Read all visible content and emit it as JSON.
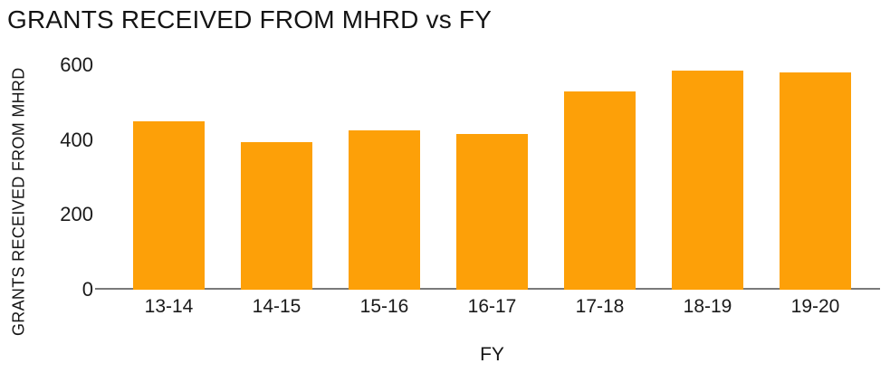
{
  "chart": {
    "title": "GRANTS RECEIVED FROM MHRD vs FY",
    "xlabel": "FY",
    "ylabel": "GRANTS RECEIVED FROM MHRD"
  },
  "chart_data": {
    "type": "bar",
    "title": "GRANTS RECEIVED FROM MHRD vs FY",
    "categories": [
      "13-14",
      "14-15",
      "15-16",
      "16-17",
      "17-18",
      "18-19",
      "19-20"
    ],
    "values": [
      450,
      395,
      425,
      415,
      530,
      585,
      580
    ],
    "xlabel": "FY",
    "ylabel": "GRANTS RECEIVED FROM MHRD",
    "ylim": [
      0,
      600
    ],
    "yticks": [
      0,
      200,
      400,
      600
    ],
    "grid": false,
    "legend": false,
    "colors": {
      "bar": "#FDA008",
      "axis_line": "#7a7a7a",
      "text": "#141414"
    }
  }
}
